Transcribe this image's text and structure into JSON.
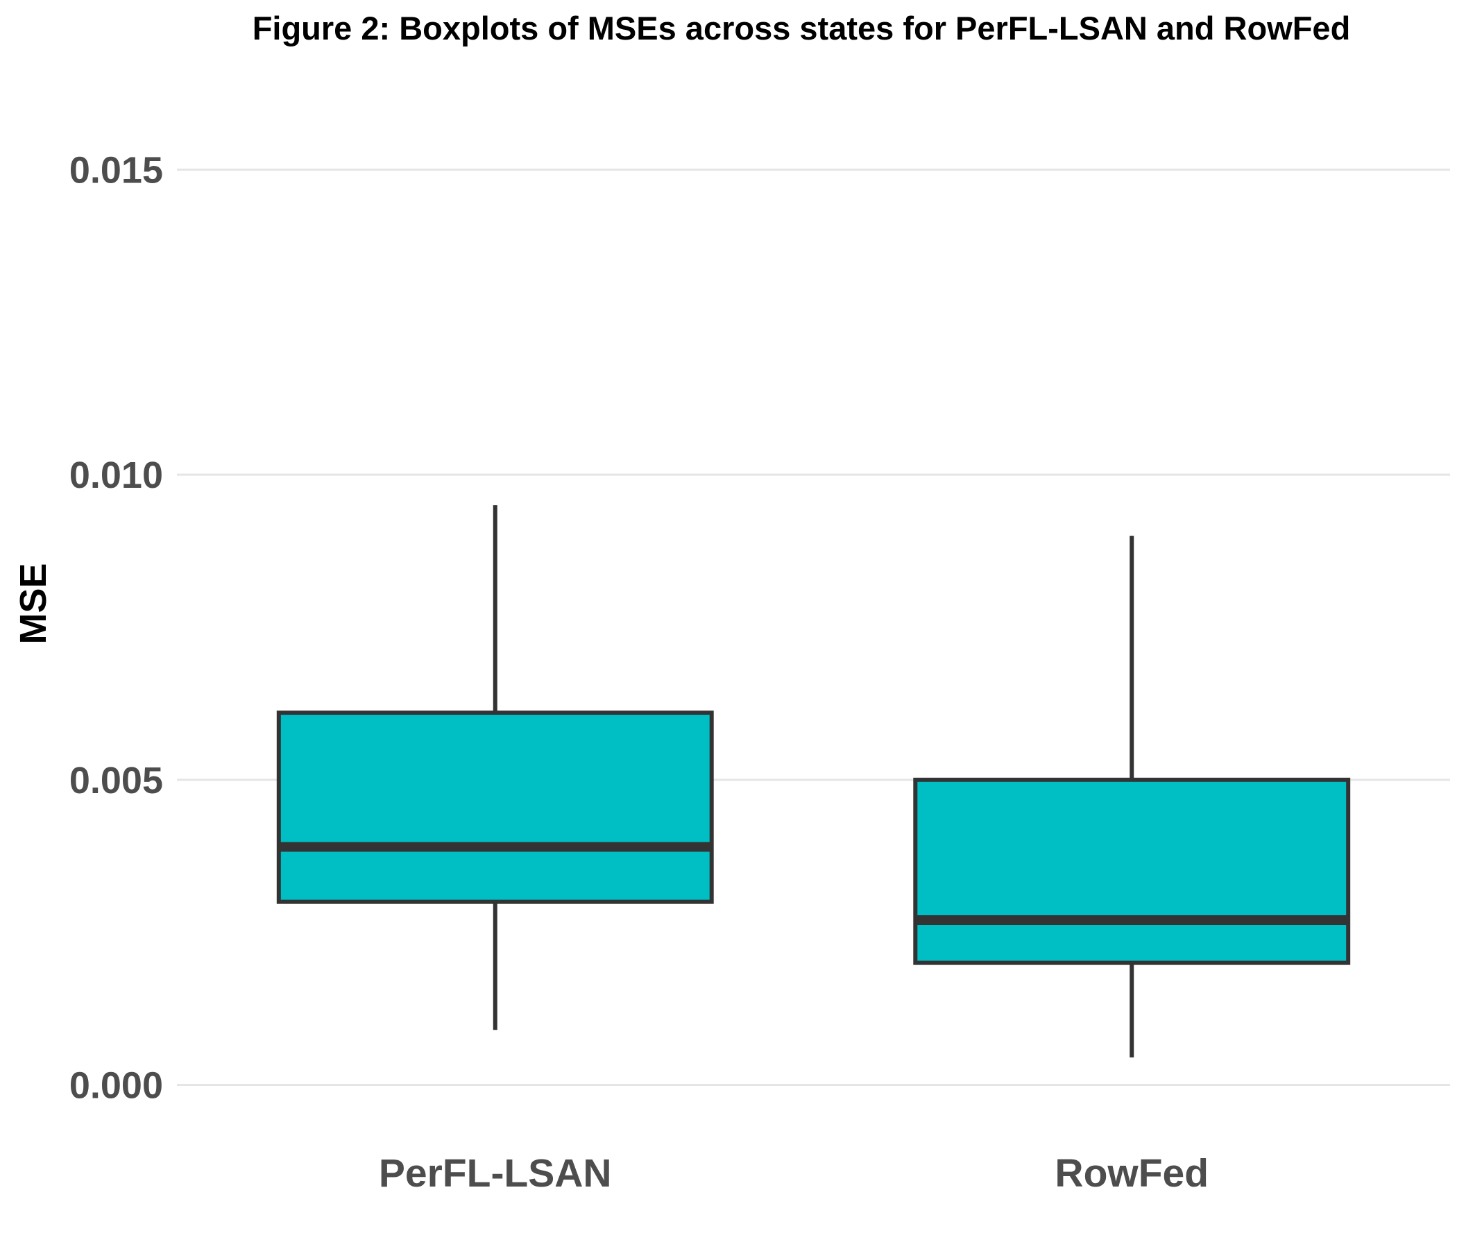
{
  "chart_data": {
    "type": "boxplot",
    "title": "Figure 2: Boxplots of MSEs across states for PerFL-LSAN and RowFed",
    "xlabel": "",
    "ylabel": "MSE",
    "ylim": [
      -0.0007,
      0.0167
    ],
    "yticks": [
      0.0,
      0.005,
      0.01,
      0.015
    ],
    "ytick_labels": [
      "0.000",
      "0.005",
      "0.010",
      "0.015"
    ],
    "grid": "horizontal",
    "categories": [
      "PerFL-LSAN",
      "RowFed"
    ],
    "boxes": [
      {
        "name": "PerFL-LSAN",
        "whisker_low": 0.0009,
        "q1": 0.003,
        "median": 0.0039,
        "q3": 0.0061,
        "whisker_high": 0.0095
      },
      {
        "name": "RowFed",
        "whisker_low": 0.00045,
        "q1": 0.002,
        "median": 0.0027,
        "q3": 0.005,
        "whisker_high": 0.009
      }
    ],
    "colors": {
      "fill": "#00bfc4",
      "stroke": "#333333",
      "grid": "#e5e5e5",
      "tick_text": "#4d4d4d",
      "title_text": "#000000"
    }
  }
}
